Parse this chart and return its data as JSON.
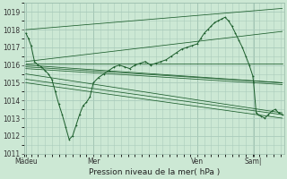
{
  "bg_color": "#cce8d4",
  "grid_color": "#aaccbb",
  "line_color": "#1a5c2a",
  "xlabel": "Pression niveau de la mer( hPa )",
  "ylim": [
    1011,
    1019.5
  ],
  "yticks": [
    1011,
    1012,
    1013,
    1014,
    1015,
    1016,
    1017,
    1018,
    1019
  ],
  "xlim": [
    0,
    300
  ],
  "tick_fontsize": 5.5,
  "xlabel_fontsize": 6.5,
  "xtick_positions": [
    2,
    80,
    200,
    265
  ],
  "xtick_labels": [
    "Mädeu",
    "Mer",
    "Ven",
    "Sam|"
  ],
  "day_lines": [
    2,
    80,
    200,
    265
  ],
  "main_line": [
    2,
    1017.8,
    5,
    1017.5,
    8,
    1017.1,
    12,
    1016.2,
    16,
    1016.0,
    20,
    1015.9,
    24,
    1015.7,
    28,
    1015.5,
    32,
    1015.2,
    36,
    1014.5,
    40,
    1013.8,
    44,
    1013.2,
    48,
    1012.5,
    52,
    1011.8,
    56,
    1012.0,
    60,
    1012.6,
    64,
    1013.2,
    68,
    1013.7,
    72,
    1013.9,
    76,
    1014.2,
    80,
    1015.0,
    86,
    1015.3,
    92,
    1015.5,
    98,
    1015.7,
    104,
    1015.9,
    110,
    1016.0,
    116,
    1015.9,
    122,
    1015.8,
    128,
    1016.0,
    134,
    1016.1,
    140,
    1016.2,
    146,
    1016.0,
    152,
    1016.1,
    158,
    1016.2,
    164,
    1016.3,
    170,
    1016.5,
    176,
    1016.7,
    182,
    1016.9,
    188,
    1017.0,
    194,
    1017.1,
    200,
    1017.2,
    204,
    1017.5,
    208,
    1017.8,
    212,
    1018.0,
    216,
    1018.2,
    220,
    1018.4,
    224,
    1018.5,
    228,
    1018.6,
    232,
    1018.7,
    236,
    1018.5,
    240,
    1018.2,
    244,
    1017.8,
    248,
    1017.4,
    252,
    1017.0,
    256,
    1016.5,
    260,
    1016.0,
    264,
    1015.4,
    265,
    1015.0,
    268,
    1013.3,
    270,
    1013.2,
    274,
    1013.1,
    278,
    1013.0,
    282,
    1013.2,
    286,
    1013.4,
    290,
    1013.5,
    294,
    1013.3,
    298,
    1013.2
  ],
  "fan_lines": [
    [
      2,
      1018.0,
      298,
      1019.2
    ],
    [
      2,
      1016.2,
      298,
      1017.9
    ],
    [
      2,
      1016.1,
      298,
      1016.1
    ],
    [
      2,
      1016.0,
      298,
      1015.0
    ],
    [
      2,
      1015.9,
      298,
      1015.0
    ],
    [
      2,
      1015.8,
      298,
      1014.9
    ],
    [
      2,
      1015.5,
      298,
      1013.3
    ],
    [
      2,
      1015.2,
      298,
      1013.2
    ],
    [
      2,
      1015.0,
      298,
      1013.0
    ]
  ]
}
